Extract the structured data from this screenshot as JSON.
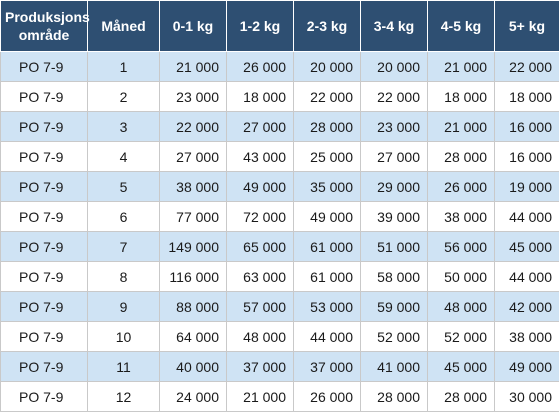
{
  "table": {
    "headers": [
      "Produksjons område",
      "Måned",
      "0-1 kg",
      "1-2 kg",
      "2-3 kg",
      "3-4 kg",
      "4-5 kg",
      "5+ kg"
    ],
    "rows": [
      [
        "PO 7-9",
        "1",
        "21 000",
        "26 000",
        "20 000",
        "20 000",
        "21 000",
        "22 000"
      ],
      [
        "PO 7-9",
        "2",
        "23 000",
        "18 000",
        "22 000",
        "22 000",
        "18 000",
        "18 000"
      ],
      [
        "PO 7-9",
        "3",
        "22 000",
        "27 000",
        "28 000",
        "23 000",
        "21 000",
        "16 000"
      ],
      [
        "PO 7-9",
        "4",
        "27 000",
        "43 000",
        "25 000",
        "27 000",
        "28 000",
        "16 000"
      ],
      [
        "PO 7-9",
        "5",
        "38 000",
        "49 000",
        "35 000",
        "29 000",
        "26 000",
        "19 000"
      ],
      [
        "PO 7-9",
        "6",
        "77 000",
        "72 000",
        "49 000",
        "39 000",
        "38 000",
        "44 000"
      ],
      [
        "PO 7-9",
        "7",
        "149 000",
        "65 000",
        "61 000",
        "51 000",
        "56 000",
        "45 000"
      ],
      [
        "PO 7-9",
        "8",
        "116 000",
        "63 000",
        "61 000",
        "58 000",
        "50 000",
        "44 000"
      ],
      [
        "PO 7-9",
        "9",
        "88 000",
        "57 000",
        "53 000",
        "59 000",
        "48 000",
        "42 000"
      ],
      [
        "PO 7-9",
        "10",
        "64 000",
        "48 000",
        "44 000",
        "52 000",
        "52 000",
        "38 000"
      ],
      [
        "PO 7-9",
        "11",
        "40 000",
        "37 000",
        "37 000",
        "41 000",
        "45 000",
        "49 000"
      ],
      [
        "PO 7-9",
        "12",
        "24 000",
        "21 000",
        "26 000",
        "28 000",
        "28 000",
        "30 000"
      ]
    ]
  },
  "colors": {
    "header_bg": "#2e4f72",
    "header_text": "#ffffff",
    "row_alt_bg": "#cfe3f4",
    "row_plain_bg": "#ffffff",
    "grid_line": "#c9c9c9"
  }
}
